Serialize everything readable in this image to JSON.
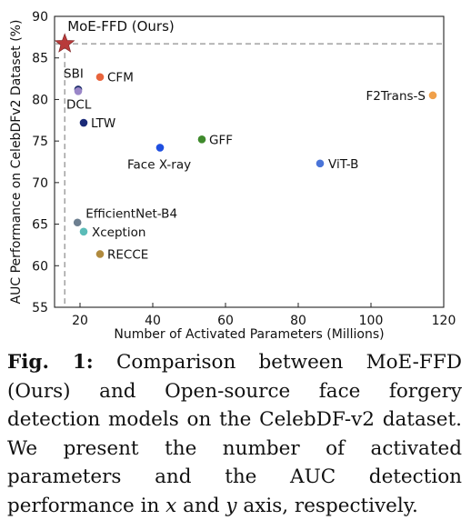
{
  "chart_data": {
    "type": "scatter",
    "xlabel": "Number of Activated Parameters (Millions)",
    "ylabel": "AUC Performance on CelebDFv2 Dataset (%)",
    "xlim": [
      13,
      120
    ],
    "ylim": [
      55,
      90
    ],
    "xticks": [
      20,
      40,
      60,
      80,
      100,
      120
    ],
    "yticks": [
      55,
      60,
      65,
      70,
      75,
      80,
      85,
      90
    ],
    "grid": false,
    "reference_lines": {
      "x": 15.8,
      "y": 86.7,
      "style": "dashed"
    },
    "points": [
      {
        "label": "MoE-FFD (Ours)",
        "x": 15.8,
        "y": 86.7,
        "color": "#b83a3a",
        "marker": "star"
      },
      {
        "label": "SBI",
        "x": 19.5,
        "y": 81.2,
        "color": "#1f2f6b",
        "marker": "circle"
      },
      {
        "label": "DCL",
        "x": 19.5,
        "y": 81.0,
        "color": "#9a86c8",
        "marker": "circle"
      },
      {
        "label": "CFM",
        "x": 25.5,
        "y": 82.7,
        "color": "#e8643c",
        "marker": "circle"
      },
      {
        "label": "LTW",
        "x": 21.0,
        "y": 77.2,
        "color": "#1a2a78",
        "marker": "circle"
      },
      {
        "label": "Face X-ray",
        "x": 42.0,
        "y": 74.2,
        "color": "#1f4fe0",
        "marker": "circle"
      },
      {
        "label": "GFF",
        "x": 53.5,
        "y": 75.2,
        "color": "#3f8a2c",
        "marker": "circle"
      },
      {
        "label": "ViT-B",
        "x": 86.0,
        "y": 72.3,
        "color": "#4a74d8",
        "marker": "circle"
      },
      {
        "label": "F2Trans-S",
        "x": 117.0,
        "y": 80.5,
        "color": "#f0a04a",
        "marker": "circle"
      },
      {
        "label": "EfficientNet-B4",
        "x": 19.3,
        "y": 65.2,
        "color": "#6d7f90",
        "marker": "circle"
      },
      {
        "label": "Xception",
        "x": 21.0,
        "y": 64.1,
        "color": "#5bbcb8",
        "marker": "circle"
      },
      {
        "label": "RECCE",
        "x": 25.5,
        "y": 61.4,
        "color": "#b08a3e",
        "marker": "circle"
      }
    ]
  },
  "caption": {
    "fig_label": "Fig. 1:",
    "text_1": " Comparison between MoE-FFD (Ours) and Open-source face forgery detection models on the CelebDF-v2 dataset. We present the number of activated parameters and the AUC detection performance in ",
    "x_var": "x",
    "text_2": " and ",
    "y_var": "y",
    "text_3": " axis, respectively."
  }
}
